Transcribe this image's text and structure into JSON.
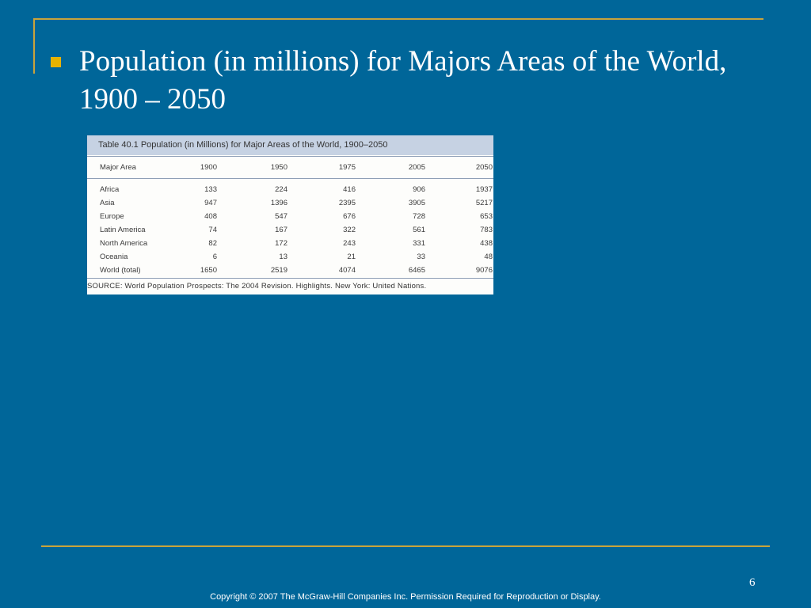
{
  "slide": {
    "title": "Population (in millions) for Majors Areas of the World, 1900 – 2050",
    "page_number": "6",
    "copyright": "Copyright © 2007 The McGraw-Hill Companies Inc. Permission Required for Reproduction or Display."
  },
  "table": {
    "caption": "Table 40.1  Population (in Millions) for Major Areas of the World, 1900–2050",
    "headers": [
      "Major  Area",
      "1900",
      "1950",
      "1975",
      "2005",
      "2050"
    ],
    "rows": [
      [
        "Africa",
        "133",
        "224",
        "416",
        "906",
        "1937"
      ],
      [
        "Asia",
        "947",
        "1396",
        "2395",
        "3905",
        "5217"
      ],
      [
        "Europe",
        "408",
        "547",
        "676",
        "728",
        "653"
      ],
      [
        "Latin America",
        "74",
        "167",
        "322",
        "561",
        "783"
      ],
      [
        "North America",
        "82",
        "172",
        "243",
        "331",
        "438"
      ],
      [
        "Oceania",
        "6",
        "13",
        "21",
        "33",
        "48"
      ],
      [
        "World (total)",
        "1650",
        "2519",
        "4074",
        "6465",
        "9076"
      ]
    ],
    "source": "SOURCE: World Population Prospects: The 2004 Revision. Highlights. New York: United Nations."
  },
  "colors": {
    "background": "#006699",
    "accent_rule": "#c9a43a",
    "bullet": "#e6b300"
  }
}
